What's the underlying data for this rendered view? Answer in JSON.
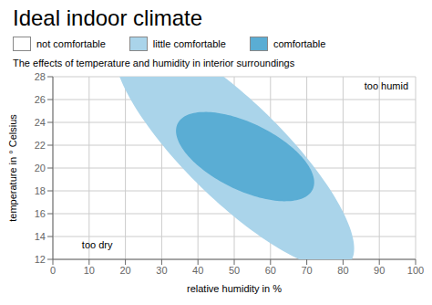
{
  "chart_data": {
    "type": "ellipse",
    "title": "Ideal indoor climate",
    "subtitle": "The effects of temperature and humidity in interior surroundings",
    "xlabel": "relative humidity in %",
    "ylabel": "temperature in ° Celsius",
    "xlim": [
      0,
      100
    ],
    "ylim": [
      12,
      28
    ],
    "xticks": [
      0,
      10,
      20,
      30,
      40,
      50,
      60,
      70,
      80,
      90,
      100
    ],
    "yticks": [
      12,
      14,
      16,
      18,
      20,
      22,
      24,
      26,
      28
    ],
    "grid": true,
    "series": [
      {
        "name": "not comfortable",
        "color": "#ffffff"
      },
      {
        "name": "little comfortable",
        "color": "#aad4ea",
        "cx": 50,
        "cy": 21.5,
        "rx": 34,
        "ry": 5.5,
        "angle": -15
      },
      {
        "name": "comfortable",
        "color": "#5aadd4",
        "cx": 53,
        "cy": 21.0,
        "rx": 19,
        "ry": 3.1,
        "angle": -7
      }
    ],
    "annotations": [
      {
        "text": "too humid",
        "x": 98,
        "y": 27.5
      },
      {
        "text": "too dry",
        "x": 8,
        "y": 13.0
      }
    ]
  }
}
